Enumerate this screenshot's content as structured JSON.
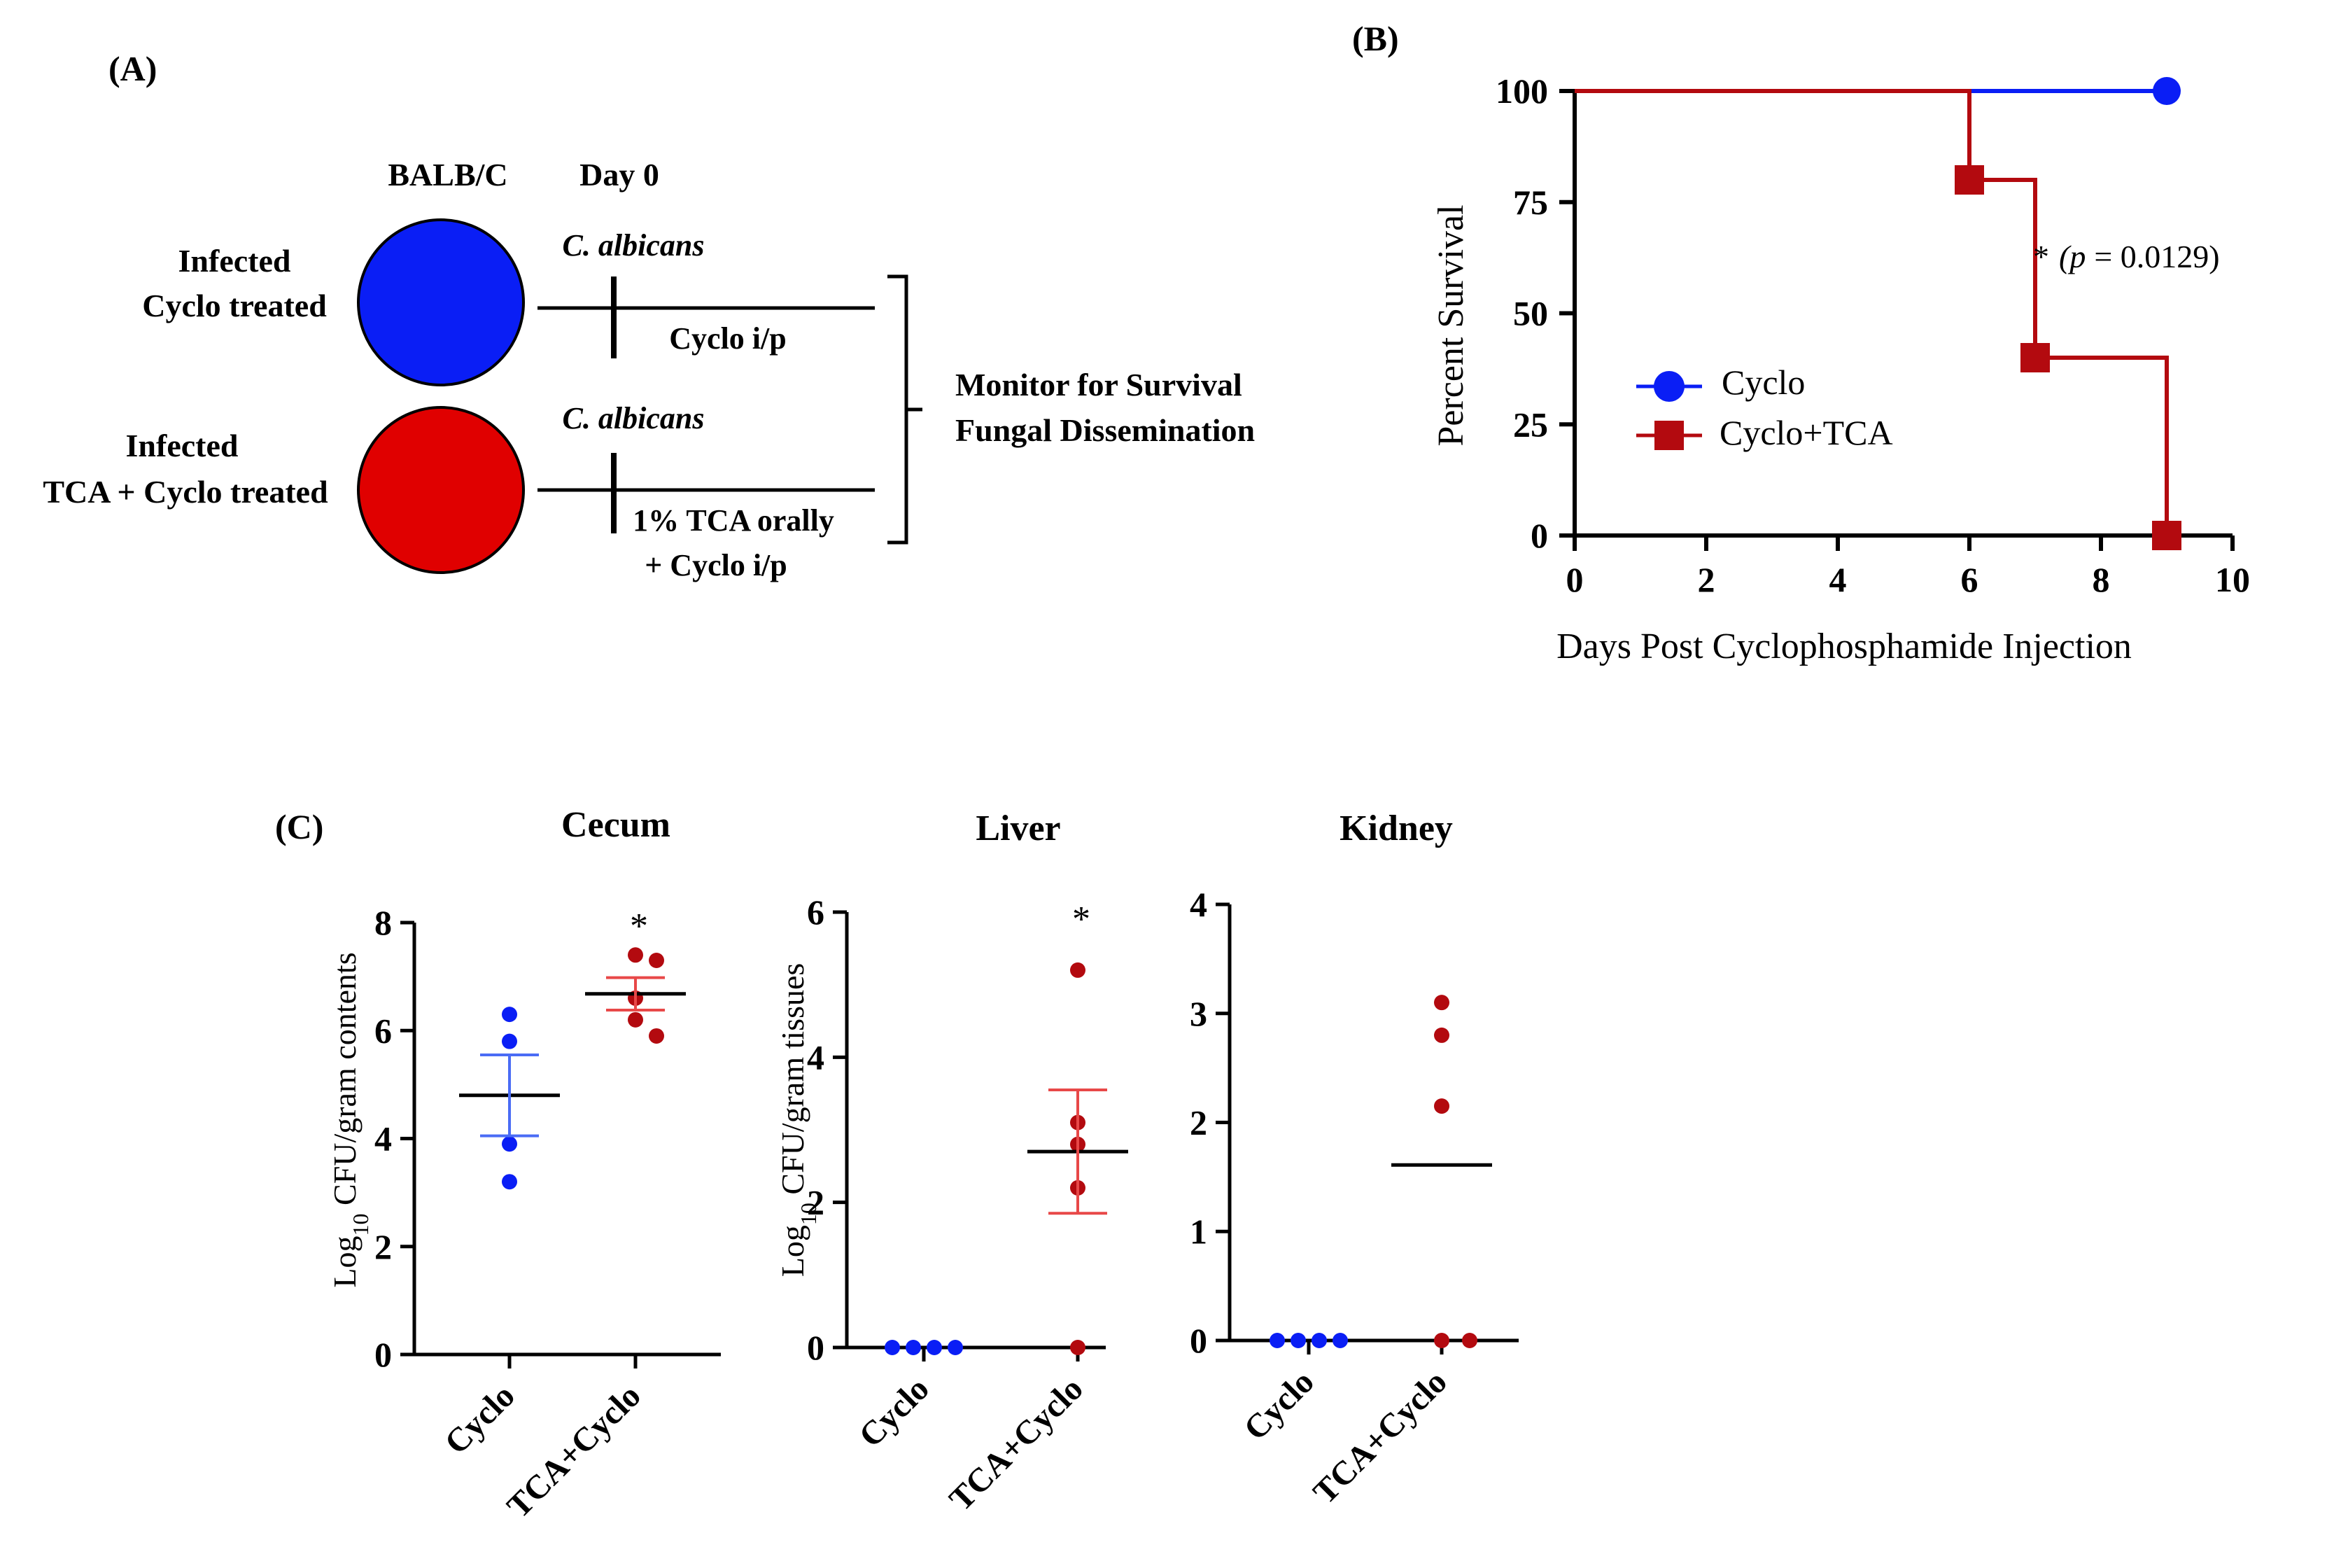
{
  "colors": {
    "blue": "#0a1ef5",
    "red": "#b30a0f",
    "red_fill": "#e00000",
    "light_red": "#e84848",
    "light_blue": "#4a6cf5",
    "black": "#000000"
  },
  "panelA": {
    "label": "(A)",
    "strain": "BALB/C",
    "day": "Day 0",
    "group1": {
      "line1": "Infected",
      "line2": "Cyclo treated",
      "pathogen": "C. albicans",
      "treatment": "Cyclo i/p"
    },
    "group2": {
      "line1": "Infected",
      "line2": "TCA + Cyclo treated",
      "pathogen": "C. albicans",
      "treatment1": "1% TCA orally",
      "treatment2": "+ Cyclo i/p"
    },
    "monitor1": "Monitor for Survival",
    "monitor2": "Fungal Dissemination"
  },
  "panelB": {
    "label": "(B)",
    "annotation_star": "*",
    "annotation_p": "p",
    "annotation_value": "= 0.0129)",
    "annotation_open": "(",
    "legend_cyclo": "Cyclo",
    "legend_tca": "Cyclo+TCA"
  },
  "panelC": {
    "label": "(C)",
    "ylabel_cecum": {
      "pre": "Log",
      "sub": "10",
      "post": " CFU/gram contents"
    },
    "ylabel_tissue": {
      "pre": "Log",
      "sub": "10",
      "post": " CFU/gram tissues"
    },
    "significance": "*"
  },
  "chart_data": [
    {
      "type": "line",
      "subtype": "kaplan-meier survival",
      "title": "",
      "xlabel": "Days Post Cyclophosphamide Injection",
      "ylabel": "Percent Survival",
      "xlim": [
        0,
        10
      ],
      "ylim": [
        0,
        100
      ],
      "xticks": [
        0,
        2,
        4,
        6,
        8,
        10
      ],
      "yticks": [
        0,
        25,
        50,
        75,
        100
      ],
      "series": [
        {
          "name": "Cyclo",
          "color": "#0a1ef5",
          "marker": "circle",
          "step_x": [
            0,
            9
          ],
          "step_y": [
            100,
            100
          ],
          "markers": [
            {
              "x": 9,
              "y": 100
            }
          ]
        },
        {
          "name": "Cyclo+TCA",
          "color": "#b30a0f",
          "marker": "square",
          "step_x": [
            0,
            6,
            7,
            9
          ],
          "step_y": [
            100,
            80,
            40,
            0
          ],
          "markers": [
            {
              "x": 6,
              "y": 80
            },
            {
              "x": 7,
              "y": 40
            },
            {
              "x": 9,
              "y": 0
            }
          ]
        }
      ],
      "annotation": "* (p = 0.0129)"
    },
    {
      "type": "scatter",
      "subtype": "dot plot with mean and SEM",
      "title": "Cecum",
      "ylabel": "Log10 CFU/gram contents",
      "ylim": [
        0,
        8
      ],
      "yticks": [
        0,
        2,
        4,
        6,
        8
      ],
      "categories": [
        "Cyclo",
        "TCA+Cyclo"
      ],
      "groups": [
        {
          "name": "Cyclo",
          "color": "#0a1ef5",
          "values": [
            6.3,
            5.8,
            3.9,
            3.2
          ],
          "mean": 4.8,
          "sem_low": 4.05,
          "sem_high": 5.55
        },
        {
          "name": "TCA+Cyclo",
          "color": "#b30a0f",
          "values": [
            7.4,
            7.3,
            6.6,
            6.2,
            5.9
          ],
          "mean": 6.68,
          "sem_low": 6.38,
          "sem_high": 6.98,
          "significance": "*"
        }
      ]
    },
    {
      "type": "scatter",
      "subtype": "dot plot with mean and SEM",
      "title": "Liver",
      "ylabel": "Log10 CFU/gram tissues",
      "ylim": [
        0,
        6
      ],
      "yticks": [
        0,
        2,
        4,
        6
      ],
      "categories": [
        "Cyclo",
        "TCA+Cyclo"
      ],
      "groups": [
        {
          "name": "Cyclo",
          "color": "#0a1ef5",
          "values": [
            0,
            0,
            0,
            0
          ]
        },
        {
          "name": "TCA+Cyclo",
          "color": "#b30a0f",
          "values": [
            5.2,
            3.1,
            2.8,
            2.2,
            0
          ],
          "mean": 2.7,
          "sem_low": 1.85,
          "sem_high": 3.55,
          "significance": "*"
        }
      ]
    },
    {
      "type": "scatter",
      "subtype": "dot plot with mean",
      "title": "Kidney",
      "ylabel": "",
      "ylim": [
        0,
        4
      ],
      "yticks": [
        0,
        1,
        2,
        3,
        4
      ],
      "categories": [
        "Cyclo",
        "TCA+Cyclo"
      ],
      "groups": [
        {
          "name": "Cyclo",
          "color": "#0a1ef5",
          "values": [
            0,
            0,
            0,
            0
          ]
        },
        {
          "name": "TCA+Cyclo",
          "color": "#b30a0f",
          "values": [
            3.1,
            2.8,
            2.15,
            0,
            0
          ],
          "mean": 1.61
        }
      ]
    }
  ]
}
